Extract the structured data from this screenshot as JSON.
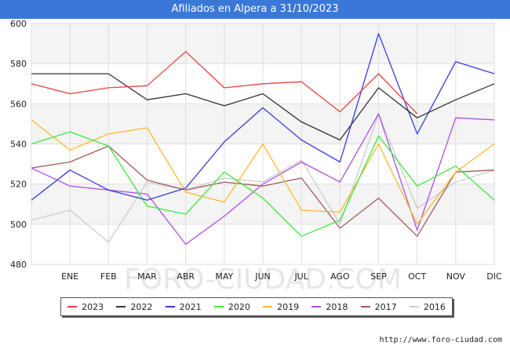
{
  "title": "Afiliados en Alpera a 31/10/2023",
  "credit": "http://www.foro-ciudad.com",
  "watermark": "FORO-CIUDAD.COM",
  "chart_data": {
    "type": "line",
    "title": "Afiliados en Alpera a 31/10/2023",
    "categories": [
      "",
      "ENE",
      "FEB",
      "MAR",
      "ABR",
      "MAY",
      "JUN",
      "JUL",
      "AGO",
      "SEP",
      "OCT",
      "NOV",
      "DIC"
    ],
    "ylim": [
      480,
      600
    ],
    "yticks": [
      480,
      500,
      520,
      540,
      560,
      580,
      600
    ],
    "grid": true,
    "legend_position": "bottom",
    "series": [
      {
        "name": "2023",
        "color": "#e8413c",
        "values": [
          570,
          565,
          568,
          569,
          586,
          568,
          570,
          571,
          556,
          575,
          555,
          null,
          null
        ]
      },
      {
        "name": "2022",
        "color": "#333333",
        "values": [
          575,
          575,
          575,
          562,
          565,
          559,
          565,
          551,
          542,
          568,
          553,
          562,
          570
        ]
      },
      {
        "name": "2021",
        "color": "#3a3ae0",
        "values": [
          512,
          527,
          517,
          512,
          518,
          541,
          558,
          542,
          531,
          595,
          545,
          581,
          575
        ]
      },
      {
        "name": "2020",
        "color": "#3fe83f",
        "values": [
          540,
          546,
          539,
          509,
          505,
          526,
          513,
          494,
          502,
          544,
          519,
          529,
          512
        ]
      },
      {
        "name": "2019",
        "color": "#ffb830",
        "values": [
          552,
          537,
          545,
          548,
          516,
          511,
          540,
          507,
          506,
          540,
          500,
          526,
          540
        ]
      },
      {
        "name": "2018",
        "color": "#b04ee8",
        "values": [
          528,
          519,
          517,
          515,
          490,
          504,
          520,
          531,
          521,
          555,
          497,
          553,
          552
        ]
      },
      {
        "name": "2017",
        "color": "#a65b5b",
        "values": [
          528,
          531,
          539,
          522,
          517,
          521,
          519,
          523,
          498,
          513,
          494,
          526,
          527
        ]
      },
      {
        "name": "2016",
        "color": "#cccccc",
        "values": [
          502,
          507,
          491,
          521,
          517,
          523,
          521,
          532,
          500,
          555,
          508,
          521,
          527
        ]
      }
    ]
  }
}
